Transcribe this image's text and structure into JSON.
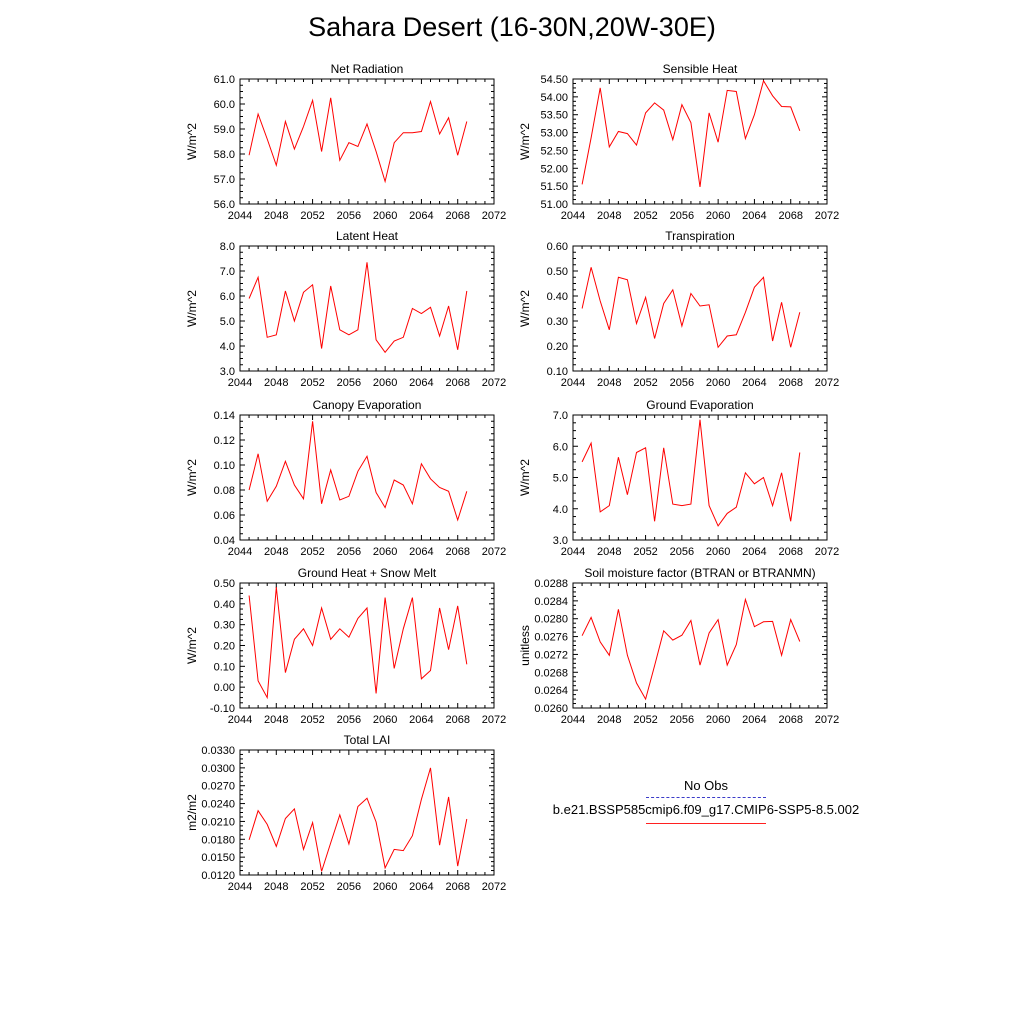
{
  "title": "Sahara Desert (16-30N,20W-30E)",
  "colors": {
    "model_line": "#ff0000",
    "obs_line": "#3333cc",
    "axis": "#000000"
  },
  "legend": {
    "obs_label": "No Obs",
    "model_label": "b.e21.BSSP585cmip6.f09_g17.CMIP6-SSP5-8.5.002"
  },
  "chart_data": [
    {
      "type": "line",
      "title": "Net Radiation",
      "ylabel": "W/m^2",
      "xlim": [
        2044,
        2072
      ],
      "xticks": [
        2044,
        2048,
        2052,
        2056,
        2060,
        2064,
        2068,
        2072
      ],
      "ylim": [
        56.0,
        61.0
      ],
      "yticks": [
        "56.0",
        "57.0",
        "58.0",
        "59.0",
        "60.0",
        "61.0"
      ],
      "x": [
        2045,
        2046,
        2047,
        2048,
        2049,
        2050,
        2051,
        2052,
        2053,
        2054,
        2055,
        2056,
        2057,
        2058,
        2059,
        2060,
        2061,
        2062,
        2063,
        2064,
        2065,
        2066,
        2067,
        2068,
        2069
      ],
      "series": [
        {
          "values": [
            57.95,
            59.6,
            58.6,
            57.55,
            59.3,
            58.2,
            59.1,
            60.15,
            58.1,
            60.25,
            57.75,
            58.45,
            58.3,
            59.2,
            58.1,
            56.9,
            58.45,
            58.85,
            58.85,
            58.9,
            60.1,
            58.8,
            59.45,
            57.95,
            59.3
          ]
        }
      ]
    },
    {
      "type": "line",
      "title": "Sensible Heat",
      "ylabel": "W/m^2",
      "xlim": [
        2044,
        2072
      ],
      "xticks": [
        2044,
        2048,
        2052,
        2056,
        2060,
        2064,
        2068,
        2072
      ],
      "ylim": [
        51.0,
        54.5
      ],
      "yticks": [
        "51.00",
        "51.50",
        "52.00",
        "52.50",
        "53.00",
        "53.50",
        "54.00",
        "54.50"
      ],
      "x": [
        2045,
        2046,
        2047,
        2048,
        2049,
        2050,
        2051,
        2052,
        2053,
        2054,
        2055,
        2056,
        2057,
        2058,
        2059,
        2060,
        2061,
        2062,
        2063,
        2064,
        2065,
        2066,
        2067,
        2068,
        2069
      ],
      "series": [
        {
          "values": [
            51.55,
            52.85,
            54.25,
            52.6,
            53.03,
            52.97,
            52.65,
            53.55,
            53.83,
            53.63,
            52.8,
            53.78,
            53.28,
            51.48,
            53.55,
            52.73,
            54.18,
            54.15,
            52.83,
            53.5,
            54.45,
            54.03,
            53.73,
            53.72,
            53.05
          ]
        }
      ]
    },
    {
      "type": "line",
      "title": "Latent Heat",
      "ylabel": "W/m^2",
      "xlim": [
        2044,
        2072
      ],
      "xticks": [
        2044,
        2048,
        2052,
        2056,
        2060,
        2064,
        2068,
        2072
      ],
      "ylim": [
        3.0,
        8.0
      ],
      "yticks": [
        "3.0",
        "4.0",
        "5.0",
        "6.0",
        "7.0",
        "8.0"
      ],
      "x": [
        2045,
        2046,
        2047,
        2048,
        2049,
        2050,
        2051,
        2052,
        2053,
        2054,
        2055,
        2056,
        2057,
        2058,
        2059,
        2060,
        2061,
        2062,
        2063,
        2064,
        2065,
        2066,
        2067,
        2068,
        2069
      ],
      "series": [
        {
          "values": [
            5.9,
            6.75,
            4.35,
            4.45,
            6.2,
            5.0,
            6.15,
            6.45,
            3.9,
            6.4,
            4.65,
            4.45,
            4.65,
            7.35,
            4.25,
            3.75,
            4.2,
            4.35,
            5.5,
            5.3,
            5.55,
            4.4,
            5.6,
            3.85,
            6.2
          ]
        }
      ]
    },
    {
      "type": "line",
      "title": "Transpiration",
      "ylabel": "W/m^2",
      "xlim": [
        2044,
        2072
      ],
      "xticks": [
        2044,
        2048,
        2052,
        2056,
        2060,
        2064,
        2068,
        2072
      ],
      "ylim": [
        0.1,
        0.6
      ],
      "yticks": [
        "0.10",
        "0.20",
        "0.30",
        "0.40",
        "0.50",
        "0.60"
      ],
      "x": [
        2045,
        2046,
        2047,
        2048,
        2049,
        2050,
        2051,
        2052,
        2053,
        2054,
        2055,
        2056,
        2057,
        2058,
        2059,
        2060,
        2061,
        2062,
        2063,
        2064,
        2065,
        2066,
        2067,
        2068,
        2069
      ],
      "series": [
        {
          "values": [
            0.35,
            0.515,
            0.38,
            0.265,
            0.475,
            0.465,
            0.29,
            0.395,
            0.23,
            0.37,
            0.425,
            0.28,
            0.41,
            0.36,
            0.365,
            0.195,
            0.24,
            0.245,
            0.335,
            0.435,
            0.475,
            0.22,
            0.375,
            0.195,
            0.335
          ]
        }
      ]
    },
    {
      "type": "line",
      "title": "Canopy Evaporation",
      "ylabel": "W/m^2",
      "xlim": [
        2044,
        2072
      ],
      "xticks": [
        2044,
        2048,
        2052,
        2056,
        2060,
        2064,
        2068,
        2072
      ],
      "ylim": [
        0.04,
        0.14
      ],
      "yticks": [
        "0.04",
        "0.06",
        "0.08",
        "0.10",
        "0.12",
        "0.14"
      ],
      "x": [
        2045,
        2046,
        2047,
        2048,
        2049,
        2050,
        2051,
        2052,
        2053,
        2054,
        2055,
        2056,
        2057,
        2058,
        2059,
        2060,
        2061,
        2062,
        2063,
        2064,
        2065,
        2066,
        2067,
        2068,
        2069
      ],
      "series": [
        {
          "values": [
            0.08,
            0.109,
            0.071,
            0.083,
            0.103,
            0.084,
            0.073,
            0.135,
            0.069,
            0.096,
            0.072,
            0.075,
            0.095,
            0.107,
            0.078,
            0.066,
            0.088,
            0.084,
            0.069,
            0.101,
            0.089,
            0.082,
            0.079,
            0.056,
            0.079
          ]
        }
      ]
    },
    {
      "type": "line",
      "title": "Ground Evaporation",
      "ylabel": "W/m^2",
      "xlim": [
        2044,
        2072
      ],
      "xticks": [
        2044,
        2048,
        2052,
        2056,
        2060,
        2064,
        2068,
        2072
      ],
      "ylim": [
        3.0,
        7.0
      ],
      "yticks": [
        "3.0",
        "4.0",
        "5.0",
        "6.0",
        "7.0"
      ],
      "x": [
        2045,
        2046,
        2047,
        2048,
        2049,
        2050,
        2051,
        2052,
        2053,
        2054,
        2055,
        2056,
        2057,
        2058,
        2059,
        2060,
        2061,
        2062,
        2063,
        2064,
        2065,
        2066,
        2067,
        2068,
        2069
      ],
      "series": [
        {
          "values": [
            5.5,
            6.1,
            3.9,
            4.1,
            5.65,
            4.45,
            5.8,
            5.95,
            3.6,
            5.95,
            4.15,
            4.1,
            4.15,
            6.85,
            4.1,
            3.45,
            3.85,
            4.05,
            5.15,
            4.8,
            5.0,
            4.1,
            5.15,
            3.6,
            5.8
          ]
        }
      ]
    },
    {
      "type": "line",
      "title": "Ground Heat + Snow Melt",
      "ylabel": "W/m^2",
      "xlim": [
        2044,
        2072
      ],
      "xticks": [
        2044,
        2048,
        2052,
        2056,
        2060,
        2064,
        2068,
        2072
      ],
      "ylim": [
        -0.1,
        0.5
      ],
      "yticks": [
        "-0.10",
        "0.00",
        "0.10",
        "0.20",
        "0.30",
        "0.40",
        "0.50"
      ],
      "x": [
        2045,
        2046,
        2047,
        2048,
        2049,
        2050,
        2051,
        2052,
        2053,
        2054,
        2055,
        2056,
        2057,
        2058,
        2059,
        2060,
        2061,
        2062,
        2063,
        2064,
        2065,
        2066,
        2067,
        2068,
        2069
      ],
      "series": [
        {
          "values": [
            0.44,
            0.03,
            -0.05,
            0.48,
            0.07,
            0.23,
            0.28,
            0.2,
            0.38,
            0.23,
            0.28,
            0.24,
            0.33,
            0.38,
            -0.03,
            0.43,
            0.09,
            0.28,
            0.43,
            0.04,
            0.08,
            0.38,
            0.18,
            0.39,
            0.11
          ]
        }
      ]
    },
    {
      "type": "line",
      "title": "Soil moisture factor (BTRAN or BTRANMN)",
      "ylabel": "unitless",
      "xlim": [
        2044,
        2072
      ],
      "xticks": [
        2044,
        2048,
        2052,
        2056,
        2060,
        2064,
        2068,
        2072
      ],
      "ylim": [
        0.026,
        0.0288
      ],
      "yticks": [
        "0.0260",
        "0.0264",
        "0.0268",
        "0.0272",
        "0.0276",
        "0.0280",
        "0.0284",
        "0.0288"
      ],
      "x": [
        2045,
        2046,
        2047,
        2048,
        2049,
        2050,
        2051,
        2052,
        2053,
        2054,
        2055,
        2056,
        2057,
        2058,
        2059,
        2060,
        2061,
        2062,
        2063,
        2064,
        2065,
        2066,
        2067,
        2068,
        2069
      ],
      "series": [
        {
          "values": [
            0.02762,
            0.02803,
            0.02748,
            0.02718,
            0.02821,
            0.02718,
            0.02656,
            0.0262,
            0.02695,
            0.02773,
            0.02752,
            0.02763,
            0.02796,
            0.02696,
            0.02768,
            0.02798,
            0.02696,
            0.02742,
            0.02843,
            0.02782,
            0.02793,
            0.02794,
            0.02718,
            0.02798,
            0.02749
          ]
        }
      ]
    },
    {
      "type": "line",
      "title": "Total LAI",
      "ylabel": "m2/m2",
      "xlim": [
        2044,
        2072
      ],
      "xticks": [
        2044,
        2048,
        2052,
        2056,
        2060,
        2064,
        2068,
        2072
      ],
      "ylim": [
        0.012,
        0.033
      ],
      "yticks": [
        "0.0120",
        "0.0150",
        "0.0180",
        "0.0210",
        "0.0240",
        "0.0270",
        "0.0300",
        "0.0330"
      ],
      "x": [
        2045,
        2046,
        2047,
        2048,
        2049,
        2050,
        2051,
        2052,
        2053,
        2054,
        2055,
        2056,
        2057,
        2058,
        2059,
        2060,
        2061,
        2062,
        2063,
        2064,
        2065,
        2066,
        2067,
        2068,
        2069
      ],
      "series": [
        {
          "values": [
            0.0179,
            0.0228,
            0.0205,
            0.0168,
            0.0215,
            0.0231,
            0.0163,
            0.0208,
            0.0126,
            0.0174,
            0.0221,
            0.0172,
            0.0235,
            0.0249,
            0.0209,
            0.0132,
            0.0163,
            0.0161,
            0.0186,
            0.0247,
            0.03,
            0.017,
            0.0251,
            0.0135,
            0.0214
          ]
        }
      ]
    }
  ]
}
